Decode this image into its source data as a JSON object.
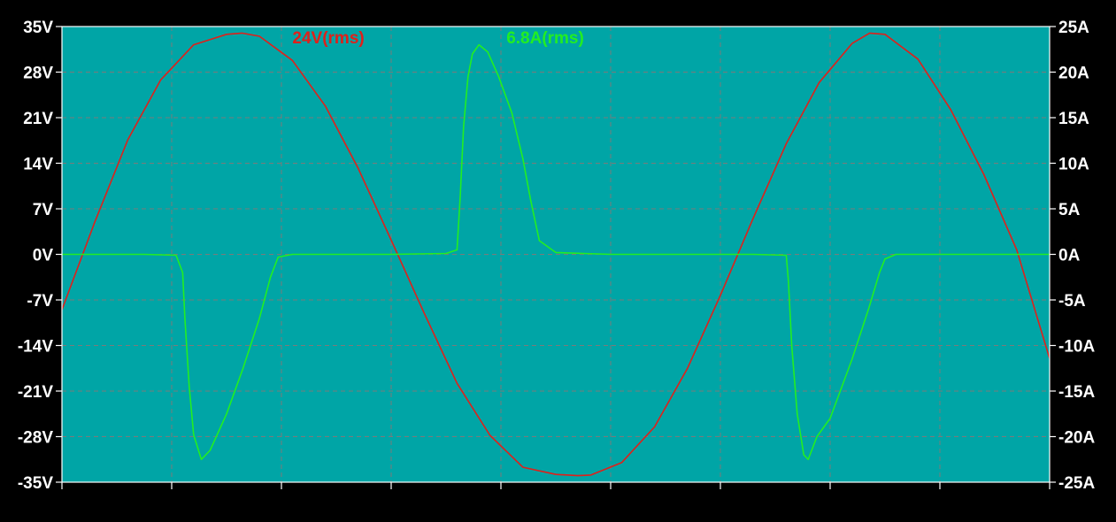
{
  "chart_data": {
    "type": "line",
    "background_color": "#000000",
    "plot_background_color": "#00A5A6",
    "grid": true,
    "grid_color": "#7a7a7a",
    "y_left": {
      "min": -35,
      "max": 35,
      "ticks": [
        35,
        28,
        21,
        14,
        7,
        0,
        -7,
        -14,
        -21,
        -28,
        -35
      ],
      "tick_labels": [
        "35V",
        "28V",
        "21V",
        "14V",
        "7V",
        "0V",
        "-7V",
        "-14V",
        "-21V",
        "-28V",
        "-35V"
      ]
    },
    "y_right": {
      "min": -25,
      "max": 25,
      "ticks": [
        25,
        20,
        15,
        10,
        5,
        0,
        -5,
        -10,
        -15,
        -20,
        -25
      ],
      "tick_labels": [
        "25A",
        "20A",
        "15A",
        "10A",
        "5A",
        "0A",
        "-5A",
        "-10A",
        "-15A",
        "-20A",
        "-25A"
      ]
    },
    "x": {
      "min": 0,
      "max": 9,
      "ticks": [
        0,
        1,
        2,
        3,
        4,
        5,
        6,
        7,
        8,
        9
      ],
      "tick_labels": []
    },
    "series": [
      {
        "name": "24V(rms)",
        "axis": "left",
        "color": "#e0201a",
        "x": [
          0,
          0.3,
          0.6,
          0.9,
          1.2,
          1.5,
          1.64,
          1.8,
          2.1,
          2.4,
          2.7,
          3.0,
          3.3,
          3.6,
          3.9,
          4.2,
          4.5,
          4.7,
          4.82,
          5.1,
          5.4,
          5.7,
          6.0,
          6.3,
          6.6,
          6.9,
          7.2,
          7.36,
          7.5,
          7.8,
          8.1,
          8.4,
          8.7,
          9.0
        ],
        "values": [
          -8.5,
          5.0,
          17.6,
          26.8,
          32.2,
          33.8,
          34.0,
          33.5,
          29.8,
          22.8,
          13.2,
          2.2,
          -9.0,
          -19.8,
          -27.8,
          -32.7,
          -33.8,
          -34.0,
          -33.9,
          -32.0,
          -26.5,
          -17.5,
          -6.3,
          5.6,
          17.0,
          26.4,
          32.4,
          34.0,
          33.8,
          30.0,
          22.2,
          12.3,
          0.7,
          -16.0
        ]
      },
      {
        "name": "6.8A(rms)",
        "axis": "right",
        "color": "#22ee22",
        "x": [
          0,
          0.75,
          1.04,
          1.1,
          1.12,
          1.16,
          1.2,
          1.27,
          1.35,
          1.5,
          1.65,
          1.8,
          1.9,
          1.97,
          2.1,
          3.0,
          3.5,
          3.6,
          3.63,
          3.66,
          3.7,
          3.74,
          3.8,
          3.88,
          3.98,
          4.1,
          4.2,
          4.27,
          4.35,
          4.5,
          5.0,
          6.3,
          6.6,
          6.62,
          6.65,
          6.7,
          6.76,
          6.8,
          6.88,
          7.0,
          7.2,
          7.35,
          7.45,
          7.5,
          7.6,
          9.0
        ],
        "values": [
          0,
          0,
          -0.1,
          -2.0,
          -7.0,
          -14.5,
          -19.8,
          -22.5,
          -21.5,
          -17.5,
          -12.5,
          -7.0,
          -2.5,
          -0.3,
          0,
          0,
          0.1,
          0.5,
          6.5,
          14.0,
          19.5,
          22.0,
          23.0,
          22.2,
          19.5,
          15.5,
          10.5,
          6.0,
          1.5,
          0.2,
          0,
          0,
          -0.1,
          -3.0,
          -10.0,
          -17.5,
          -22.0,
          -22.5,
          -20.0,
          -18.0,
          -11.5,
          -6.0,
          -2.0,
          -0.5,
          0,
          0
        ]
      }
    ],
    "annotations": [
      {
        "text": "24V(rms)",
        "color": "#e0201a",
        "x": 2.1,
        "y": 33.4,
        "axis": "left"
      },
      {
        "text": "6.8A(rms)",
        "color": "#22ee22",
        "x": 4.05,
        "y": 33.4,
        "axis": "left"
      }
    ]
  }
}
